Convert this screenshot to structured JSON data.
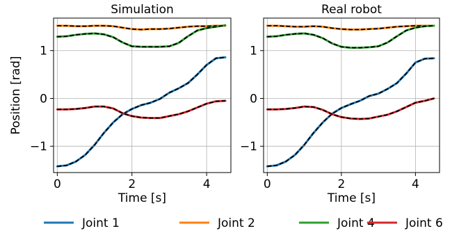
{
  "chart_data": [
    {
      "type": "line",
      "title": "Simulation",
      "xlabel": "Time [s]",
      "ylabel": "Position [rad]",
      "xlim": [
        -0.1,
        4.65
      ],
      "ylim": [
        -1.55,
        1.68
      ],
      "xticks": [
        0,
        2,
        4
      ],
      "xtick_labels": [
        "0",
        "2",
        "4"
      ],
      "yticks": [
        -1,
        0,
        1
      ],
      "ytick_labels": [
        "−1",
        "0",
        "1"
      ],
      "grid": true,
      "series": [
        {
          "name": "Joint 1",
          "color": "#1f77b4",
          "x": [
            0,
            0.25,
            0.5,
            0.75,
            1.0,
            1.25,
            1.5,
            1.75,
            2.0,
            2.25,
            2.5,
            2.75,
            3.0,
            3.25,
            3.5,
            3.75,
            4.0,
            4.25,
            4.5
          ],
          "y": [
            -1.42,
            -1.4,
            -1.32,
            -1.18,
            -0.97,
            -0.72,
            -0.5,
            -0.33,
            -0.22,
            -0.14,
            -0.09,
            -0.01,
            0.12,
            0.21,
            0.32,
            0.5,
            0.7,
            0.84,
            0.86
          ]
        },
        {
          "name": "Joint 2",
          "color": "#ff7f0e",
          "x": [
            0,
            0.25,
            0.5,
            0.75,
            1.0,
            1.25,
            1.5,
            1.75,
            2.0,
            2.25,
            2.5,
            2.75,
            3.0,
            3.25,
            3.5,
            3.75,
            4.0,
            4.25,
            4.5
          ],
          "y": [
            1.52,
            1.52,
            1.51,
            1.51,
            1.52,
            1.52,
            1.51,
            1.48,
            1.45,
            1.44,
            1.45,
            1.45,
            1.46,
            1.48,
            1.5,
            1.51,
            1.51,
            1.52,
            1.52
          ]
        },
        {
          "name": "Joint 4",
          "color": "#2ca02c",
          "x": [
            0,
            0.25,
            0.5,
            0.75,
            1.0,
            1.25,
            1.5,
            1.75,
            2.0,
            2.25,
            2.5,
            2.75,
            3.0,
            3.25,
            3.5,
            3.75,
            4.0,
            4.25,
            4.5
          ],
          "y": [
            1.29,
            1.3,
            1.33,
            1.35,
            1.36,
            1.34,
            1.28,
            1.17,
            1.09,
            1.08,
            1.08,
            1.08,
            1.09,
            1.16,
            1.3,
            1.42,
            1.47,
            1.5,
            1.53
          ]
        },
        {
          "name": "Joint 6",
          "color": "#d62728",
          "x": [
            0,
            0.25,
            0.5,
            0.75,
            1.0,
            1.25,
            1.5,
            1.75,
            2.0,
            2.25,
            2.5,
            2.75,
            3.0,
            3.25,
            3.5,
            3.75,
            4.0,
            4.25,
            4.5
          ],
          "y": [
            -0.23,
            -0.23,
            -0.22,
            -0.2,
            -0.17,
            -0.17,
            -0.21,
            -0.31,
            -0.37,
            -0.4,
            -0.41,
            -0.41,
            -0.37,
            -0.33,
            -0.27,
            -0.19,
            -0.11,
            -0.06,
            -0.05
          ]
        }
      ]
    },
    {
      "type": "line",
      "title": "Real robot",
      "xlabel": "Time [s]",
      "ylabel": "",
      "xlim": [
        -0.1,
        4.65
      ],
      "ylim": [
        -1.55,
        1.68
      ],
      "xticks": [
        0,
        2,
        4
      ],
      "xtick_labels": [
        "0",
        "2",
        "4"
      ],
      "yticks": [
        -1,
        0,
        1
      ],
      "ytick_labels": [
        "−1",
        "0",
        "1"
      ],
      "grid": true,
      "series": [
        {
          "name": "Joint 1",
          "color": "#1f77b4",
          "x": [
            0,
            0.25,
            0.5,
            0.75,
            1.0,
            1.25,
            1.5,
            1.75,
            2.0,
            2.25,
            2.5,
            2.75,
            3.0,
            3.25,
            3.5,
            3.75,
            4.0,
            4.25,
            4.5
          ],
          "y": [
            -1.42,
            -1.4,
            -1.32,
            -1.18,
            -0.97,
            -0.72,
            -0.5,
            -0.32,
            -0.2,
            -0.12,
            -0.05,
            0.05,
            0.1,
            0.2,
            0.32,
            0.52,
            0.75,
            0.83,
            0.84
          ]
        },
        {
          "name": "Joint 2",
          "color": "#ff7f0e",
          "x": [
            0,
            0.25,
            0.5,
            0.75,
            1.0,
            1.25,
            1.5,
            1.75,
            2.0,
            2.25,
            2.5,
            2.75,
            3.0,
            3.25,
            3.5,
            3.75,
            4.0,
            4.25,
            4.5
          ],
          "y": [
            1.52,
            1.52,
            1.51,
            1.5,
            1.5,
            1.51,
            1.5,
            1.47,
            1.45,
            1.44,
            1.44,
            1.45,
            1.46,
            1.48,
            1.5,
            1.51,
            1.52,
            1.52,
            1.52
          ]
        },
        {
          "name": "Joint 4",
          "color": "#2ca02c",
          "x": [
            0,
            0.25,
            0.5,
            0.75,
            1.0,
            1.25,
            1.5,
            1.75,
            2.0,
            2.25,
            2.5,
            2.75,
            3.0,
            3.25,
            3.5,
            3.75,
            4.0,
            4.25,
            4.5
          ],
          "y": [
            1.29,
            1.3,
            1.33,
            1.35,
            1.36,
            1.33,
            1.26,
            1.15,
            1.08,
            1.06,
            1.06,
            1.07,
            1.09,
            1.17,
            1.3,
            1.42,
            1.48,
            1.51,
            1.52
          ]
        },
        {
          "name": "Joint 6",
          "color": "#d62728",
          "x": [
            0,
            0.25,
            0.5,
            0.75,
            1.0,
            1.25,
            1.5,
            1.75,
            2.0,
            2.25,
            2.5,
            2.75,
            3.0,
            3.25,
            3.5,
            3.75,
            4.0,
            4.25,
            4.5
          ],
          "y": [
            -0.23,
            -0.23,
            -0.22,
            -0.2,
            -0.17,
            -0.18,
            -0.24,
            -0.33,
            -0.39,
            -0.42,
            -0.43,
            -0.42,
            -0.38,
            -0.34,
            -0.27,
            -0.18,
            -0.09,
            -0.05,
            0.0
          ]
        }
      ]
    }
  ],
  "legend": {
    "placement": "bottom",
    "items": [
      {
        "label": "Joint 1",
        "color": "#1f77b4"
      },
      {
        "label": "Joint 2",
        "color": "#ff7f0e"
      },
      {
        "label": "Joint 4",
        "color": "#2ca02c"
      },
      {
        "label": "Joint 6",
        "color": "#d62728"
      }
    ]
  },
  "reference_line": {
    "color": "#000000",
    "style": "dashed"
  }
}
